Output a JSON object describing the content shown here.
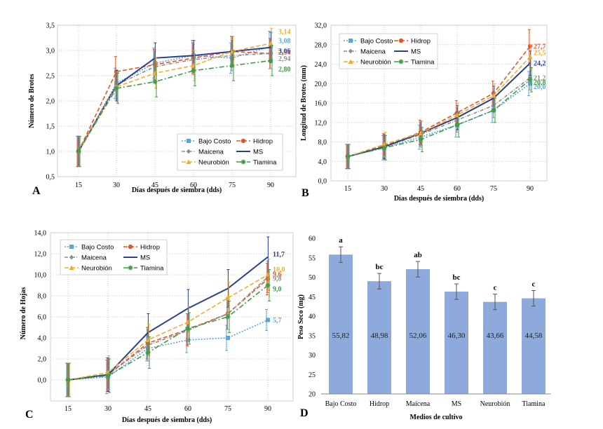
{
  "styles": {
    "Bajo Costo": {
      "color": "#5aa7d6",
      "dash": "2,2",
      "marker": "square"
    },
    "Hidrop": {
      "color": "#e2562d",
      "dash": "6,3",
      "marker": "circle"
    },
    "Maicena": {
      "color": "#8e8e8e",
      "dash": "5,2,1,2",
      "marker": "diamond"
    },
    "MS": {
      "color": "#2a3f93",
      "dash": "",
      "marker": "none"
    },
    "Neurobión": {
      "color": "#f2ac2b",
      "dash": "6,3",
      "marker": "triangle"
    },
    "Tiamina": {
      "color": "#3f9b45",
      "dash": "7,3,2,3",
      "marker": "star"
    }
  },
  "chart_data": [
    {
      "panel": "A",
      "type": "line",
      "xlabel": "Días después de siembra (dds)",
      "ylabel": "Número de Brotes",
      "x": [
        15,
        30,
        45,
        60,
        75,
        90
      ],
      "xticks": [
        "15",
        "30",
        "45",
        "60",
        "75",
        "90"
      ],
      "ylim": [
        0.5,
        3.5
      ],
      "yticks": [
        "0,5",
        "1,0",
        "1,5",
        "2,0",
        "2,5",
        "3,0",
        "3,5"
      ],
      "grid": true,
      "legend": "bottom-right",
      "legend_rows": [
        [
          "Bajo Costo",
          "Hidrop"
        ],
        [
          "Maicena",
          "MS"
        ],
        [
          "Neurobión",
          "Tiamina"
        ]
      ],
      "series": [
        {
          "name": "Bajo Costo",
          "values": [
            1.0,
            2.35,
            2.75,
            2.9,
            2.85,
            3.08
          ],
          "errors": [
            0.3,
            0.3,
            0.3,
            0.3,
            0.3,
            0.3
          ],
          "end_label": "3,08"
        },
        {
          "name": "Hidrop",
          "values": [
            1.0,
            2.58,
            2.72,
            2.85,
            2.98,
            2.94
          ],
          "errors": [
            0.3,
            0.3,
            0.3,
            0.3,
            0.3,
            0.3
          ],
          "end_label": "2,94"
        },
        {
          "name": "Maicena",
          "values": [
            1.0,
            2.32,
            2.68,
            2.82,
            2.9,
            2.94
          ],
          "errors": [
            0.3,
            0.3,
            0.3,
            0.3,
            0.3,
            0.3
          ],
          "end_label": "2,94"
        },
        {
          "name": "MS",
          "values": [
            1.0,
            2.3,
            2.85,
            2.9,
            2.98,
            3.06
          ],
          "errors": [
            0.3,
            0.3,
            0.3,
            0.3,
            0.3,
            0.3
          ],
          "end_label": "3,06"
        },
        {
          "name": "Neurobión",
          "values": [
            1.0,
            2.28,
            2.55,
            2.7,
            2.98,
            3.14
          ],
          "errors": [
            0.3,
            0.3,
            0.3,
            0.3,
            0.3,
            0.3
          ],
          "end_label": "3,14"
        },
        {
          "name": "Tiamina",
          "values": [
            1.0,
            2.25,
            2.38,
            2.6,
            2.7,
            2.8
          ],
          "errors": [
            0.3,
            0.3,
            0.3,
            0.3,
            0.3,
            0.3
          ],
          "end_label": "2,80"
        }
      ]
    },
    {
      "panel": "B",
      "type": "line",
      "xlabel": "Días después de siembra (dds)",
      "ylabel": "Longitud de Brotes (mm)",
      "x": [
        15,
        30,
        45,
        60,
        75,
        90
      ],
      "xticks": [
        "15",
        "30",
        "45",
        "60",
        "75",
        "90"
      ],
      "ylim": [
        0,
        32
      ],
      "yticks": [
        "0,0",
        "4,0",
        "8,0",
        "12,0",
        "16,0",
        "20,0",
        "24,0",
        "28,0",
        "32,0"
      ],
      "grid": true,
      "legend": "top-left",
      "legend_rows": [
        [
          "Bajo Costo",
          "Hidrop"
        ],
        [
          "Maicena",
          "MS"
        ],
        [
          "Neurobión",
          "Tiamina"
        ]
      ],
      "series": [
        {
          "name": "Bajo Costo",
          "values": [
            5.0,
            6.8,
            9.0,
            11.5,
            14.5,
            20.0
          ],
          "errors": [
            2.5,
            2.5,
            2.5,
            2.5,
            2.5,
            2.5
          ],
          "end_label": "20,0"
        },
        {
          "name": "Hidrop",
          "values": [
            5.0,
            7.2,
            10.0,
            14.0,
            18.0,
            27.7
          ],
          "errors": [
            2.5,
            2.5,
            2.5,
            2.5,
            2.5,
            3.4
          ],
          "end_label": "27,7"
        },
        {
          "name": "Maicena",
          "values": [
            5.0,
            7.0,
            9.5,
            12.5,
            15.5,
            21.2
          ],
          "errors": [
            2.5,
            2.5,
            2.5,
            2.5,
            2.5,
            2.5
          ],
          "end_label": "21,2"
        },
        {
          "name": "MS",
          "values": [
            5.0,
            7.0,
            9.8,
            13.0,
            17.0,
            24.2
          ],
          "errors": [
            2.5,
            2.5,
            2.5,
            2.5,
            2.5,
            2.5
          ],
          "end_label": "24,2"
        },
        {
          "name": "Neurobión",
          "values": [
            5.0,
            7.5,
            9.8,
            13.5,
            17.5,
            25.5
          ],
          "errors": [
            2.5,
            2.5,
            2.5,
            2.5,
            2.5,
            2.5
          ],
          "end_label": "25,5"
        },
        {
          "name": "Tiamina",
          "values": [
            5.0,
            6.8,
            8.5,
            11.5,
            14.5,
            20.8
          ],
          "errors": [
            2.5,
            2.5,
            2.5,
            2.5,
            2.5,
            2.5
          ],
          "end_label": "20,8"
        }
      ]
    },
    {
      "panel": "C",
      "type": "line",
      "xlabel": "Días después de siembra (dds)",
      "ylabel": "Número de Hojas",
      "x": [
        15,
        30,
        45,
        60,
        75,
        90
      ],
      "xticks": [
        "15",
        "30",
        "45",
        "60",
        "75",
        "90"
      ],
      "ylim": [
        -2,
        14
      ],
      "yticks": [
        "0,0",
        "2,0",
        "4,0",
        "6,0",
        "8,0",
        "10,0",
        "12,0",
        "14,0"
      ],
      "ytick_values": [
        0,
        2,
        4,
        6,
        8,
        10,
        12,
        14
      ],
      "grid": true,
      "legend": "top-left",
      "legend_rows": [
        [
          "Bajo Costo",
          "Hidrop"
        ],
        [
          "Maicena",
          "MS"
        ],
        [
          "Neurobión",
          "Tiamina"
        ]
      ],
      "series": [
        {
          "name": "Bajo Costo",
          "values": [
            0.0,
            0.3,
            3.0,
            3.8,
            4.0,
            5.7
          ],
          "errors": [
            1.6,
            1.6,
            1.2,
            1.2,
            1.2,
            1.0
          ],
          "end_label": "5,7"
        },
        {
          "name": "Hidrop",
          "values": [
            0.0,
            0.5,
            3.5,
            4.8,
            6.3,
            9.6
          ],
          "errors": [
            1.6,
            1.6,
            1.5,
            1.5,
            1.5,
            1.5
          ],
          "end_label": "9,6"
        },
        {
          "name": "Maicena",
          "values": [
            0.0,
            0.5,
            3.3,
            4.7,
            6.3,
            9.8
          ],
          "errors": [
            1.6,
            1.6,
            1.5,
            1.5,
            1.5,
            1.5
          ],
          "end_label": "9,8"
        },
        {
          "name": "MS",
          "values": [
            0.0,
            0.5,
            4.5,
            6.8,
            8.7,
            11.7
          ],
          "errors": [
            1.6,
            1.6,
            1.8,
            1.8,
            1.8,
            1.9
          ],
          "end_label": "11,7"
        },
        {
          "name": "Neurobión",
          "values": [
            0.0,
            0.7,
            3.8,
            5.5,
            7.8,
            10.0
          ],
          "errors": [
            1.6,
            1.6,
            1.5,
            1.5,
            1.5,
            1.5
          ],
          "end_label": "10,0"
        },
        {
          "name": "Tiamina",
          "values": [
            0.0,
            0.4,
            2.6,
            4.9,
            6.0,
            9.0
          ],
          "errors": [
            1.6,
            1.6,
            1.5,
            1.5,
            1.5,
            1.5
          ],
          "end_label": "9,0"
        }
      ]
    },
    {
      "panel": "D",
      "type": "bar",
      "xlabel": "Medios de cultivo",
      "ylabel": "Peso Seco (mg)",
      "categories": [
        "Bajo Costo",
        "Hidrop",
        "Maicena",
        "MS",
        "Neurobión",
        "Tiamina"
      ],
      "values": [
        55.82,
        48.98,
        52.06,
        46.3,
        43.66,
        44.58
      ],
      "value_labels": [
        "55,82",
        "48,98",
        "52,06",
        "46,30",
        "43,66",
        "44,58"
      ],
      "errors": [
        2.0,
        2.0,
        2.0,
        2.0,
        2.0,
        2.0
      ],
      "letters": [
        "a",
        "bc",
        "ab",
        "bc",
        "c",
        "c"
      ],
      "ylim": [
        20,
        60
      ],
      "yticks": [
        "20",
        "25",
        "30",
        "35",
        "40",
        "45",
        "50",
        "55",
        "60"
      ],
      "grid": false,
      "bar_color": "#8ea9db"
    }
  ]
}
